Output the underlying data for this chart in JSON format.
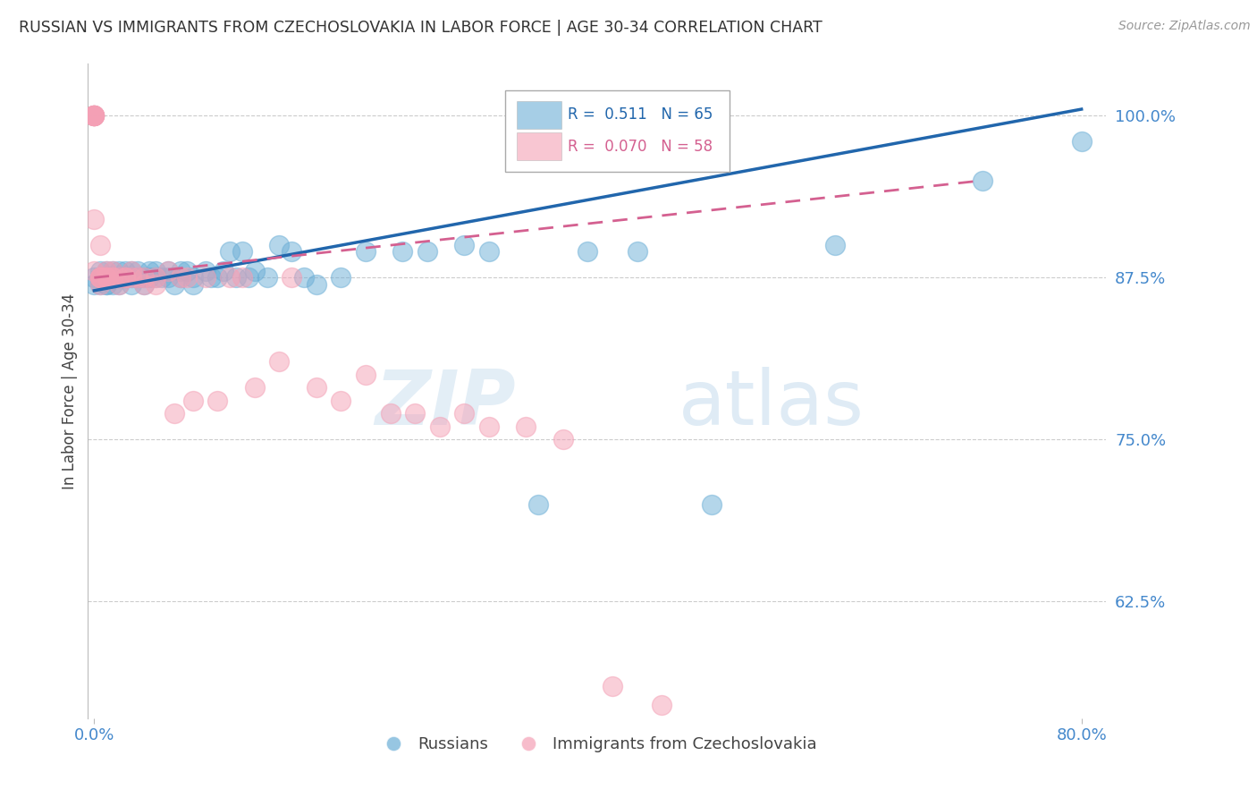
{
  "title": "RUSSIAN VS IMMIGRANTS FROM CZECHOSLOVAKIA IN LABOR FORCE | AGE 30-34 CORRELATION CHART",
  "source": "Source: ZipAtlas.com",
  "ylabel": "In Labor Force | Age 30-34",
  "ytick_values": [
    0.625,
    0.75,
    0.875,
    1.0
  ],
  "ytick_labels": [
    "62.5%",
    "75.0%",
    "87.5%",
    "100.0%"
  ],
  "xlim": [
    -0.005,
    0.82
  ],
  "ylim": [
    0.535,
    1.04
  ],
  "blue_R": 0.511,
  "blue_N": 65,
  "pink_R": 0.07,
  "pink_N": 58,
  "blue_color": "#6baed6",
  "pink_color": "#f4a0b5",
  "blue_line_color": "#2166ac",
  "pink_line_color": "#d46090",
  "title_color": "#333333",
  "axis_color": "#4488cc",
  "grid_color": "#cccccc",
  "watermark_zip": "ZIP",
  "watermark_atlas": "atlas",
  "blue_scatter_x": [
    0.0,
    0.0,
    0.005,
    0.005,
    0.005,
    0.01,
    0.01,
    0.01,
    0.01,
    0.01,
    0.015,
    0.015,
    0.015,
    0.02,
    0.02,
    0.02,
    0.025,
    0.025,
    0.03,
    0.03,
    0.03,
    0.035,
    0.035,
    0.04,
    0.04,
    0.045,
    0.045,
    0.05,
    0.05,
    0.055,
    0.06,
    0.06,
    0.065,
    0.07,
    0.07,
    0.075,
    0.08,
    0.08,
    0.09,
    0.095,
    0.1,
    0.105,
    0.11,
    0.115,
    0.12,
    0.125,
    0.13,
    0.14,
    0.15,
    0.16,
    0.17,
    0.18,
    0.2,
    0.22,
    0.25,
    0.27,
    0.3,
    0.32,
    0.36,
    0.4,
    0.44,
    0.5,
    0.6,
    0.72,
    0.8
  ],
  "blue_scatter_y": [
    0.875,
    0.87,
    0.88,
    0.875,
    0.87,
    0.875,
    0.87,
    0.88,
    0.875,
    0.87,
    0.88,
    0.875,
    0.87,
    0.88,
    0.875,
    0.87,
    0.875,
    0.88,
    0.875,
    0.87,
    0.88,
    0.875,
    0.88,
    0.875,
    0.87,
    0.88,
    0.875,
    0.88,
    0.875,
    0.875,
    0.88,
    0.875,
    0.87,
    0.875,
    0.88,
    0.88,
    0.875,
    0.87,
    0.88,
    0.875,
    0.875,
    0.88,
    0.895,
    0.875,
    0.895,
    0.875,
    0.88,
    0.875,
    0.9,
    0.895,
    0.875,
    0.87,
    0.875,
    0.895,
    0.895,
    0.895,
    0.9,
    0.895,
    0.7,
    0.895,
    0.895,
    0.7,
    0.9,
    0.95,
    0.98
  ],
  "pink_scatter_x": [
    0.0,
    0.0,
    0.0,
    0.0,
    0.0,
    0.0,
    0.0,
    0.0,
    0.0,
    0.0,
    0.005,
    0.005,
    0.005,
    0.005,
    0.005,
    0.005,
    0.01,
    0.01,
    0.01,
    0.01,
    0.015,
    0.015,
    0.015,
    0.02,
    0.02,
    0.025,
    0.025,
    0.03,
    0.03,
    0.035,
    0.04,
    0.04,
    0.05,
    0.05,
    0.06,
    0.065,
    0.07,
    0.075,
    0.08,
    0.09,
    0.1,
    0.11,
    0.12,
    0.13,
    0.15,
    0.16,
    0.18,
    0.2,
    0.22,
    0.24,
    0.26,
    0.28,
    0.3,
    0.32,
    0.35,
    0.38,
    0.42,
    0.46
  ],
  "pink_scatter_y": [
    1.0,
    1.0,
    1.0,
    1.0,
    1.0,
    1.0,
    1.0,
    1.0,
    0.92,
    0.88,
    0.9,
    0.875,
    0.875,
    0.87,
    0.875,
    0.875,
    0.875,
    0.88,
    0.875,
    0.875,
    0.875,
    0.875,
    0.88,
    0.875,
    0.87,
    0.875,
    0.875,
    0.875,
    0.88,
    0.875,
    0.875,
    0.87,
    0.875,
    0.87,
    0.88,
    0.77,
    0.875,
    0.875,
    0.78,
    0.875,
    0.78,
    0.875,
    0.875,
    0.79,
    0.81,
    0.875,
    0.79,
    0.78,
    0.8,
    0.77,
    0.77,
    0.76,
    0.77,
    0.76,
    0.76,
    0.75,
    0.56,
    0.545
  ]
}
